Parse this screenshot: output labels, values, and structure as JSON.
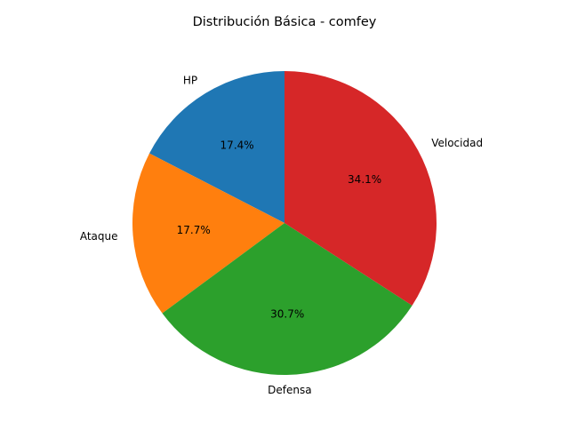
{
  "chart_data": {
    "type": "pie",
    "title": "Distribución Básica - comfey",
    "slices": [
      {
        "label": "HP",
        "value": 17.4,
        "pct_label": "17.4%",
        "color": "#1f77b4"
      },
      {
        "label": "Ataque",
        "value": 17.7,
        "pct_label": "17.7%",
        "color": "#ff7f0e"
      },
      {
        "label": "Defensa",
        "value": 30.7,
        "pct_label": "30.7%",
        "color": "#2ca02c"
      },
      {
        "label": "Velocidad",
        "value": 34.1,
        "pct_label": "34.1%",
        "color": "#d62728"
      }
    ],
    "start_angle_deg": 90,
    "direction": "counterclockwise",
    "legend": "none"
  }
}
